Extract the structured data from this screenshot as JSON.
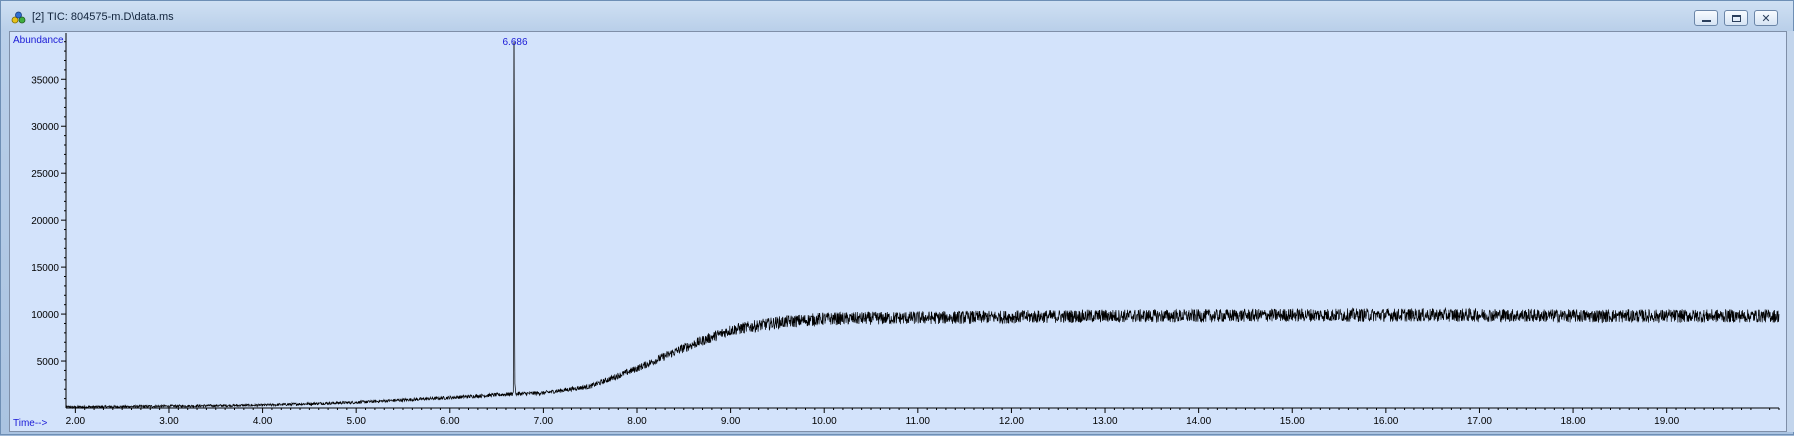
{
  "window": {
    "title": "[2] TIC: 804575-m.D\\data.ms",
    "controls": [
      "minimize",
      "maximize",
      "close"
    ],
    "close_glyph": "✕"
  },
  "colors": {
    "plot_background": "#d3e3fb",
    "trace": "#000000",
    "axis_text": "#1a1ad6",
    "tick_label": "#000000"
  },
  "chart_data": {
    "type": "line",
    "title": "",
    "ylabel": "Abundance",
    "xlabel": "Time-->",
    "xlim": [
      1.9,
      20.2
    ],
    "ylim": [
      0,
      39500
    ],
    "grid": false,
    "x_ticks": [
      "2.00",
      "3.00",
      "4.00",
      "5.00",
      "6.00",
      "7.00",
      "8.00",
      "9.00",
      "10.00",
      "11.00",
      "12.00",
      "13.00",
      "14.00",
      "15.00",
      "16.00",
      "17.00",
      "18.00",
      "19.00"
    ],
    "y_ticks": [
      "5000",
      "10000",
      "15000",
      "20000",
      "25000",
      "30000",
      "35000"
    ],
    "peak_label": "6.686",
    "peak_label_x": 6.686,
    "series": [
      {
        "name": "",
        "x": [
          1.9,
          2.5,
          3.0,
          4.0,
          5.0,
          6.0,
          6.5,
          6.68,
          6.686,
          6.69,
          6.7,
          7.0,
          7.5,
          8.0,
          8.5,
          9.0,
          9.5,
          10.0,
          11.0,
          12.0,
          13.0,
          14.0,
          15.0,
          16.0,
          17.0,
          18.0,
          19.0,
          20.2
        ],
        "y": [
          100,
          150,
          200,
          300,
          600,
          1100,
          1400,
          1500,
          39000,
          1600,
          1500,
          1600,
          2300,
          4200,
          6400,
          8300,
          9100,
          9500,
          9600,
          9700,
          9800,
          9800,
          9900,
          9900,
          9900,
          9800,
          9800,
          9800
        ]
      }
    ]
  }
}
